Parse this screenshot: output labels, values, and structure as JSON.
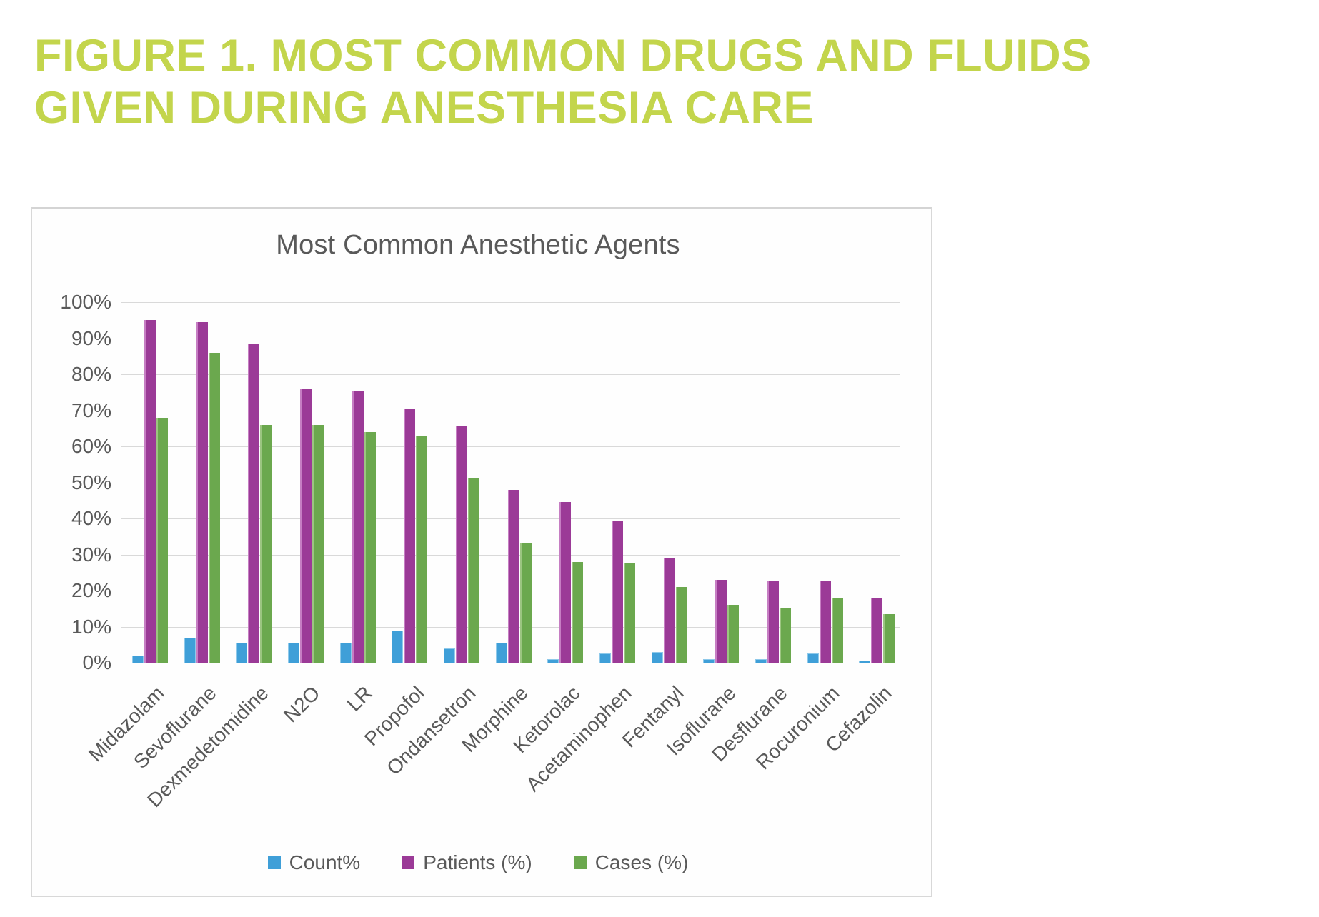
{
  "page": {
    "title_lines": [
      "FIGURE 1. MOST COMMON DRUGS AND FLUIDS",
      "GIVEN DURING ANESTHESIA CARE"
    ],
    "title_color": "#c3d54c"
  },
  "chart_data": {
    "type": "bar",
    "title": "Most Common Anesthetic Agents",
    "categories": [
      "Midazolam",
      "Sevoflurane",
      "Dexmedetomidine",
      "N2O",
      "LR",
      "Propofol",
      "Ondansetron",
      "Morphine",
      "Ketorolac",
      "Acetaminophen",
      "Fentanyl",
      "Isoflurane",
      "Desflurane",
      "Rocuronium",
      "Cefazolin"
    ],
    "series": [
      {
        "name": "Count%",
        "color": "#3f9fd8",
        "values": [
          2,
          7,
          5.5,
          5.5,
          5.5,
          9,
          4,
          5.5,
          1,
          2.5,
          3,
          1,
          1,
          2.5,
          0.5
        ]
      },
      {
        "name": "Patients (%)",
        "color": "#9b3a97",
        "values": [
          95,
          94.5,
          88.5,
          76,
          75.5,
          70.5,
          65.5,
          48,
          44.5,
          39.5,
          29,
          23,
          22.5,
          22.5,
          18
        ]
      },
      {
        "name": "Cases (%)",
        "color": "#6ba84e",
        "values": [
          68,
          86,
          66,
          66,
          64,
          63,
          51,
          33,
          28,
          27.5,
          21,
          16,
          15,
          18,
          13.5
        ]
      }
    ],
    "ylabel_ticks": [
      "100%",
      "90%",
      "80%",
      "70%",
      "60%",
      "50%",
      "40%",
      "30%",
      "20%",
      "10%",
      "0%"
    ],
    "ylim": [
      0,
      100
    ],
    "grid": true,
    "legend_position": "bottom",
    "gridline_color": "#d9d9d9",
    "text_color": "#595959"
  }
}
